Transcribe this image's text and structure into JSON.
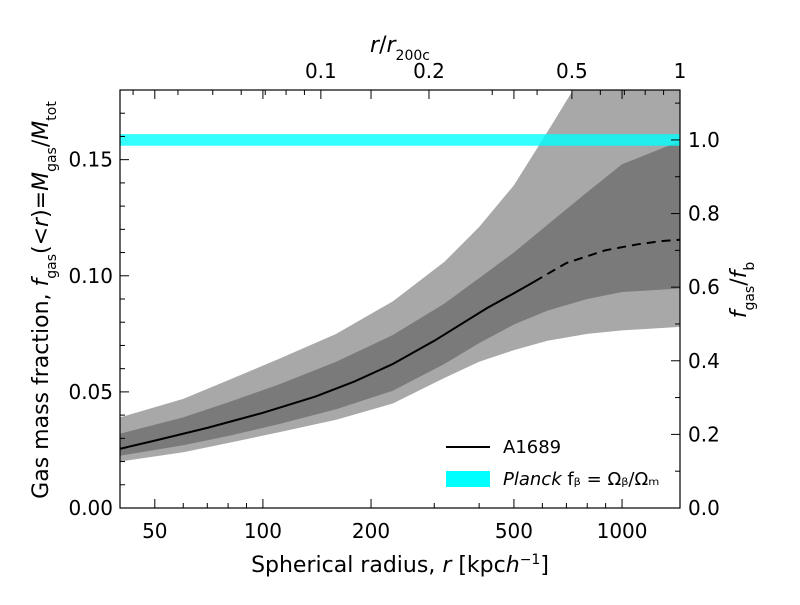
{
  "chart_data": {
    "type": "line",
    "title": "",
    "xlabel": "Spherical radius, r [kpc h⁻¹]",
    "ylabel": "Gas mass fraction, f₉ₐₛ(<r) = M₉ₐₛ/Mₜₒₜ",
    "xscale": "log",
    "xlim": [
      40,
      1450
    ],
    "ylim": [
      0,
      0.18
    ],
    "x_ticks": [
      50,
      100,
      200,
      500,
      1000
    ],
    "x_tick_labels": [
      "50",
      "100",
      "200",
      "500",
      "1000"
    ],
    "y_ticks": [
      0.0,
      0.05,
      0.1,
      0.15
    ],
    "y_tick_labels": [
      "0.00",
      "0.05",
      "0.10",
      "0.15"
    ],
    "top_axis": {
      "label": "r/r₂₀₀c",
      "ticks": [
        0.1,
        0.2,
        0.5,
        1
      ],
      "tick_labels": [
        "0.1",
        "0.2",
        "0.5",
        "1"
      ],
      "r200c_kpc": 1450
    },
    "right_axis": {
      "label": "f₉ₐₛ/fᵦ",
      "fb": 0.1585,
      "ticks": [
        0.0,
        0.2,
        0.4,
        0.6,
        0.8,
        1.0
      ],
      "tick_labels": [
        "0.0",
        "0.2",
        "0.4",
        "0.6",
        "0.8",
        "1.0"
      ]
    },
    "series": [
      {
        "name": "A1689",
        "style": "solid",
        "x": [
          40,
          50,
          70,
          100,
          140,
          180,
          230,
          300,
          420,
          500,
          570
        ],
        "y": [
          0.0255,
          0.029,
          0.0345,
          0.041,
          0.048,
          0.0545,
          0.062,
          0.072,
          0.086,
          0.0925,
          0.0975
        ]
      },
      {
        "name": "A1689 (extrapolated)",
        "style": "dashed",
        "x": [
          570,
          700,
          900,
          1100,
          1300,
          1450
        ],
        "y": [
          0.0975,
          0.1055,
          0.111,
          0.1135,
          0.115,
          0.1155
        ]
      }
    ],
    "bands": [
      {
        "name": "outer",
        "color": "#a8a8a8",
        "x": [
          40,
          60,
          80,
          110,
          160,
          230,
          320,
          400,
          500,
          620,
          800,
          1000,
          1450
        ],
        "upper": [
          0.039,
          0.047,
          0.055,
          0.064,
          0.075,
          0.089,
          0.106,
          0.121,
          0.139,
          0.162,
          0.19,
          0.215,
          0.25
        ],
        "lower": [
          0.02,
          0.024,
          0.028,
          0.0325,
          0.038,
          0.045,
          0.056,
          0.063,
          0.068,
          0.072,
          0.075,
          0.0765,
          0.078
        ]
      },
      {
        "name": "inner",
        "color": "#7a7a7a",
        "x": [
          40,
          60,
          80,
          110,
          160,
          230,
          320,
          400,
          500,
          620,
          800,
          1000,
          1450
        ],
        "upper": [
          0.032,
          0.039,
          0.0455,
          0.053,
          0.063,
          0.0745,
          0.088,
          0.099,
          0.11,
          0.122,
          0.136,
          0.148,
          0.158
        ],
        "lower": [
          0.0225,
          0.027,
          0.031,
          0.036,
          0.0425,
          0.0505,
          0.062,
          0.071,
          0.079,
          0.085,
          0.09,
          0.093,
          0.0945
        ]
      }
    ],
    "reference_band": {
      "name": "Planck f_b = Ω_b/Ω_m",
      "color": "#00ffff",
      "y_low": 0.156,
      "y_high": 0.161
    },
    "legend": {
      "position": "lower-right",
      "entries": [
        {
          "label": "A1689"
        },
        {
          "label_italic": "Planck",
          "label_rest": " fᵦ = Ωᵦ/Ωₘ"
        }
      ]
    }
  }
}
